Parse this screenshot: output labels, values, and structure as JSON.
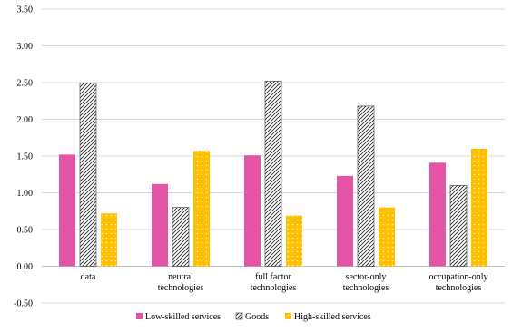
{
  "chart_data": {
    "type": "bar",
    "categories": [
      [
        "data"
      ],
      [
        "neutral",
        "technologies"
      ],
      [
        "full factor",
        "technologies"
      ],
      [
        "sector-only",
        "technologies"
      ],
      [
        "occupation-only",
        "technologies"
      ]
    ],
    "series": [
      {
        "name": "Low-skilled services",
        "values": [
          1.52,
          1.12,
          1.51,
          1.23,
          1.41
        ],
        "color": "#e555a6",
        "pattern": "solid"
      },
      {
        "name": "Goods",
        "values": [
          2.49,
          0.8,
          2.52,
          2.18,
          1.1
        ],
        "color": "#000000",
        "pattern": "diagonal-hatch"
      },
      {
        "name": "High-skilled services",
        "values": [
          0.72,
          1.57,
          0.69,
          0.8,
          1.6
        ],
        "color": "#ffc000",
        "pattern": "dotted"
      }
    ],
    "ylim": [
      -0.5,
      3.5
    ],
    "yticks": [
      "-0.50",
      "0.00",
      "0.50",
      "1.00",
      "1.50",
      "2.00",
      "2.50",
      "3.00",
      "3.50"
    ],
    "grid": true,
    "legend": "bottom",
    "title": "",
    "xlabel": "",
    "ylabel": ""
  }
}
